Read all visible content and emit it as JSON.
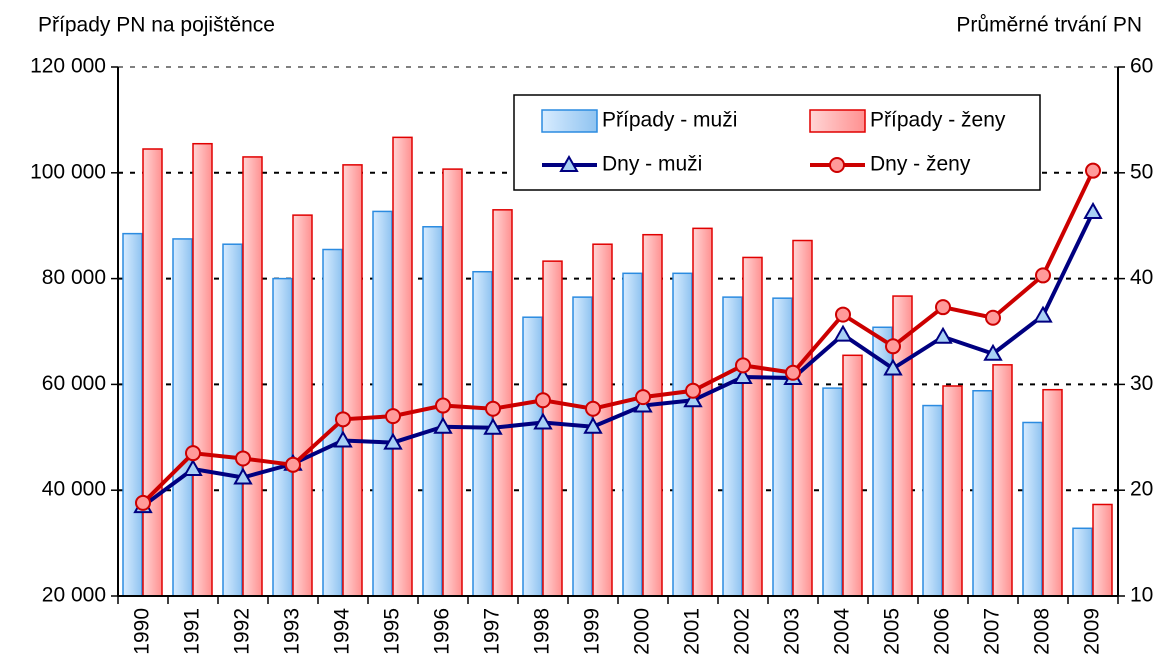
{
  "chart_data": {
    "type": "bar-line",
    "y_label": "Případy PN na pojištěnce",
    "y2_label": "Průměrné trvání PN",
    "categories": [
      "1990",
      "1991",
      "1992",
      "1993",
      "1994",
      "1995",
      "1996",
      "1997",
      "1998",
      "1999",
      "2000",
      "2001",
      "2002",
      "2003",
      "2004",
      "2005",
      "2006",
      "2007",
      "2008",
      "2009"
    ],
    "series": [
      {
        "name": "Případy - muži",
        "type": "bar",
        "color": "#2b8be0",
        "fill": "#b3d6f7",
        "values": [
          88500,
          87500,
          86500,
          80000,
          85500,
          92700,
          89800,
          81300,
          72700,
          76500,
          81000,
          81000,
          76500,
          76300,
          59300,
          70800,
          56000,
          58800,
          52800,
          32800
        ]
      },
      {
        "name": "Případy - ženy",
        "type": "bar",
        "color": "#e00000",
        "fill": "#ffb3b3",
        "values": [
          104500,
          105500,
          103000,
          92000,
          101500,
          106700,
          100700,
          93000,
          83300,
          86500,
          88300,
          89500,
          84000,
          87200,
          65500,
          76700,
          59700,
          63700,
          59000,
          37300
        ]
      },
      {
        "name": "Dny - muži",
        "type": "line",
        "axis": "y2",
        "color": "#000080",
        "marker": "triangle",
        "marker_fill": "#a8d0f5",
        "values": [
          18.5,
          22,
          21.2,
          22.5,
          24.7,
          24.5,
          26,
          25.9,
          26.4,
          26,
          28,
          28.5,
          30.7,
          30.6,
          34.7,
          31.5,
          34.5,
          32.9,
          36.5,
          46.3
        ]
      },
      {
        "name": "Dny - ženy",
        "type": "line",
        "axis": "y2",
        "color": "#cc0000",
        "marker": "circle",
        "marker_fill": "#ff9a9a",
        "values": [
          18.8,
          23.5,
          23,
          22.4,
          26.7,
          27,
          28,
          27.7,
          28.5,
          27.7,
          28.8,
          29.4,
          31.8,
          31.1,
          36.6,
          33.6,
          37.3,
          36.3,
          40.3,
          50.2
        ]
      }
    ],
    "ylim": [
      20000,
      120000
    ],
    "yticks": [
      {
        "value": 20000,
        "label": "20 000"
      },
      {
        "value": 40000,
        "label": "40 000"
      },
      {
        "value": 60000,
        "label": "60 000"
      },
      {
        "value": 80000,
        "label": "80 000"
      },
      {
        "value": 100000,
        "label": "100 000"
      },
      {
        "value": 120000,
        "label": "120 000"
      }
    ],
    "y2lim": [
      10,
      60
    ],
    "y2ticks": [
      10,
      20,
      30,
      40,
      50,
      60
    ],
    "grid": true,
    "legend": "top-right"
  }
}
